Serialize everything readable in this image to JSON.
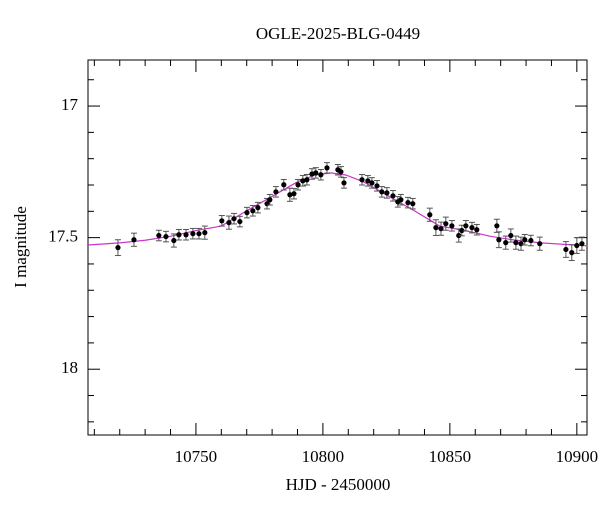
{
  "chart_data": {
    "type": "scatter",
    "title": "OGLE-2025-BLG-0449",
    "xlabel": "HJD - 2450000",
    "ylabel": "I magnitude",
    "xlim": [
      10707.5,
      10904
    ],
    "ylim": [
      18.25,
      16.825
    ],
    "xticks": [
      10750,
      10800,
      10850,
      10900
    ],
    "yticks": [
      17,
      17.5,
      18
    ],
    "xminorticks": [
      10710,
      10720,
      10730,
      10740,
      10760,
      10770,
      10780,
      10790,
      10810,
      10820,
      10830,
      10840,
      10860,
      10870,
      10880,
      10890
    ],
    "yminorticks": [
      16.9,
      17.1,
      17.2,
      17.3,
      17.4,
      17.6,
      17.7,
      17.8,
      17.9,
      18.1,
      18.2
    ],
    "points": {
      "color": "#000000",
      "x": [
        10719.3,
        10725.6,
        10735.4,
        10738.2,
        10741.3,
        10743.3,
        10746.1,
        10748.8,
        10751.2,
        10753.5,
        10760.2,
        10763,
        10765,
        10767.3,
        10770.1,
        10772.4,
        10774.4,
        10778,
        10779.1,
        10781.5,
        10784.6,
        10787,
        10788.6,
        10790.2,
        10792.1,
        10793.7,
        10795.7,
        10797.2,
        10799.2,
        10801.6,
        10805.9,
        10807.1,
        10808.3,
        10815.4,
        10817.7,
        10819.3,
        10821.3,
        10823.2,
        10825.2,
        10827.6,
        10829.5,
        10830.7,
        10833.5,
        10835.4,
        10842.1,
        10844.5,
        10846.5,
        10848.4,
        10850.8,
        10853.5,
        10854.7,
        10856.3,
        10858.7,
        10860.6,
        10868.5,
        10869.3,
        10872,
        10874,
        10876,
        10878,
        10879.5,
        10881.9,
        10885.4,
        10895.7,
        10898,
        10900,
        10902
      ],
      "y": [
        17.538,
        17.508,
        17.492,
        17.496,
        17.511,
        17.489,
        17.489,
        17.485,
        17.485,
        17.481,
        17.436,
        17.443,
        17.428,
        17.439,
        17.405,
        17.398,
        17.386,
        17.371,
        17.356,
        17.326,
        17.299,
        17.337,
        17.333,
        17.299,
        17.284,
        17.28,
        17.258,
        17.254,
        17.261,
        17.235,
        17.242,
        17.25,
        17.292,
        17.28,
        17.284,
        17.292,
        17.303,
        17.326,
        17.33,
        17.341,
        17.364,
        17.356,
        17.367,
        17.371,
        17.413,
        17.462,
        17.466,
        17.447,
        17.455,
        17.492,
        17.473,
        17.455,
        17.462,
        17.47,
        17.455,
        17.508,
        17.519,
        17.492,
        17.519,
        17.523,
        17.508,
        17.511,
        17.523,
        17.545,
        17.557,
        17.53,
        17.523
      ],
      "errors": [
        0.03,
        0.025,
        0.02,
        0.02,
        0.025,
        0.02,
        0.02,
        0.02,
        0.02,
        0.025,
        0.02,
        0.025,
        0.02,
        0.02,
        0.02,
        0.02,
        0.02,
        0.02,
        0.02,
        0.02,
        0.02,
        0.025,
        0.02,
        0.02,
        0.02,
        0.02,
        0.02,
        0.02,
        0.02,
        0.02,
        0.02,
        0.02,
        0.02,
        0.02,
        0.02,
        0.02,
        0.02,
        0.02,
        0.02,
        0.02,
        0.02,
        0.02,
        0.02,
        0.02,
        0.025,
        0.03,
        0.025,
        0.025,
        0.02,
        0.025,
        0.02,
        0.02,
        0.02,
        0.02,
        0.025,
        0.03,
        0.025,
        0.025,
        0.025,
        0.025,
        0.02,
        0.02,
        0.025,
        0.03,
        0.03,
        0.03,
        0.025
      ]
    },
    "model": {
      "color": "#cc33cc",
      "x": [
        10707.5,
        10720,
        10730,
        10740,
        10750,
        10760,
        10770,
        10780,
        10790,
        10797,
        10803,
        10809,
        10816,
        10826,
        10836,
        10846,
        10856,
        10866,
        10876,
        10886,
        10904
      ],
      "y": [
        17.528,
        17.52,
        17.51,
        17.495,
        17.473,
        17.456,
        17.398,
        17.343,
        17.288,
        17.262,
        17.254,
        17.262,
        17.288,
        17.343,
        17.398,
        17.456,
        17.473,
        17.495,
        17.51,
        17.52,
        17.531
      ]
    }
  }
}
